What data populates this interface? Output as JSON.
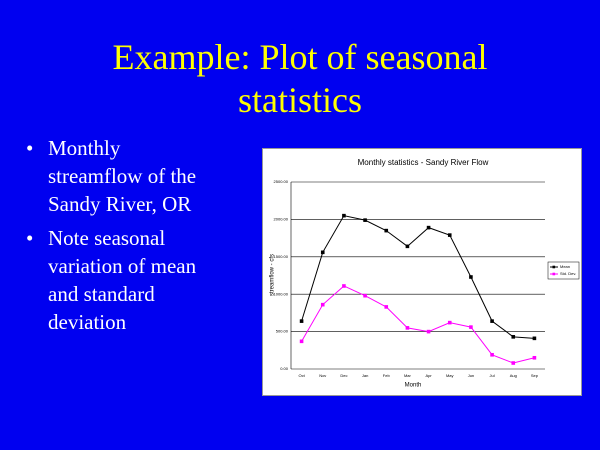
{
  "title": "Example: Plot of seasonal statistics",
  "bullets": [
    "Monthly streamflow of the Sandy River, OR",
    "Note seasonal variation of mean and standard deviation"
  ],
  "chart_data": {
    "type": "line",
    "title": "Monthly statistics - Sandy River Flow",
    "x_label": "Month",
    "y_label": "streamflow - cfs",
    "categories": [
      "Oct",
      "Nov",
      "Dec",
      "Jan",
      "Feb",
      "Mar",
      "Apr",
      "May",
      "Jun",
      "Jul",
      "Aug",
      "Sep"
    ],
    "series": [
      {
        "name": "Mean",
        "color": "#000000",
        "values": [
          640,
          1560,
          2050,
          1990,
          1850,
          1640,
          1890,
          1790,
          1230,
          640,
          430,
          410
        ]
      },
      {
        "name": "Std. Dev.",
        "color": "#ff00ff",
        "values": [
          370,
          860,
          1110,
          980,
          830,
          550,
          500,
          620,
          560,
          190,
          80,
          150
        ]
      }
    ],
    "ylim": [
      0,
      2500
    ],
    "yticks": [
      {
        "value": 0,
        "label": "0.00"
      },
      {
        "value": 500,
        "label": "500.00"
      },
      {
        "value": 1000,
        "label": "1000.00"
      },
      {
        "value": 1500,
        "label": "1500.00"
      },
      {
        "value": 2000,
        "label": "2000.00"
      },
      {
        "value": 2500,
        "label": "2500.00"
      }
    ],
    "grid": true,
    "legend": "right"
  }
}
